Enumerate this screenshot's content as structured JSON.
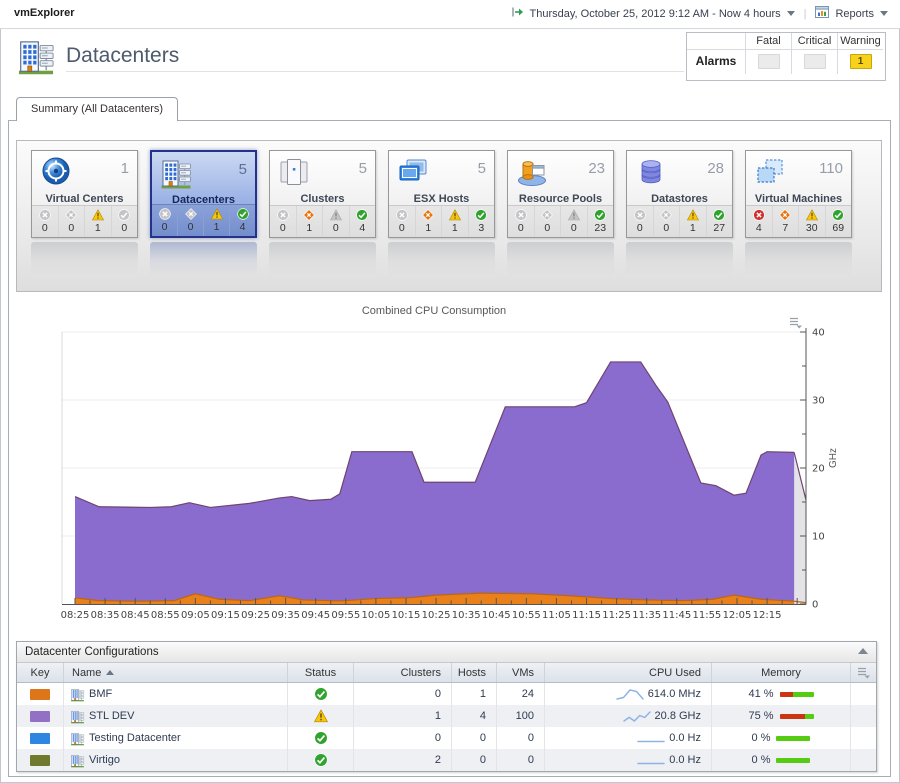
{
  "topbar": {
    "app": "vmExplorer",
    "time_range": "Thursday, October 25, 2012 9:12 AM - Now 4 hours",
    "reports_label": "Reports"
  },
  "header": {
    "title": "Datacenters",
    "alarms": {
      "label": "Alarms",
      "columns": [
        "Fatal",
        "Critical",
        "Warning"
      ],
      "values": {
        "fatal": "",
        "critical": "",
        "warning": "1"
      }
    }
  },
  "tab_label": "Summary (All Datacenters)",
  "tiles": [
    {
      "id": "virtual-centers",
      "label": "Virtual Centers",
      "count": "1",
      "selected": false,
      "statuses": [
        {
          "type": "fatal",
          "count": 0
        },
        {
          "type": "critical",
          "count": 0
        },
        {
          "type": "warning",
          "count": 1
        },
        {
          "type": "normal",
          "count": 0
        }
      ]
    },
    {
      "id": "datacenters",
      "label": "Datacenters",
      "count": "5",
      "selected": true,
      "statuses": [
        {
          "type": "fatal",
          "count": 0
        },
        {
          "type": "critical",
          "count": 0
        },
        {
          "type": "warning",
          "count": 1
        },
        {
          "type": "normal",
          "count": 4
        }
      ]
    },
    {
      "id": "clusters",
      "label": "Clusters",
      "count": "5",
      "selected": false,
      "statuses": [
        {
          "type": "fatal",
          "count": 0
        },
        {
          "type": "critical",
          "count": 1
        },
        {
          "type": "warning",
          "count": 0
        },
        {
          "type": "normal",
          "count": 4
        }
      ]
    },
    {
      "id": "esx-hosts",
      "label": "ESX Hosts",
      "count": "5",
      "selected": false,
      "statuses": [
        {
          "type": "fatal",
          "count": 0
        },
        {
          "type": "critical",
          "count": 1
        },
        {
          "type": "warning",
          "count": 1
        },
        {
          "type": "normal",
          "count": 3
        }
      ]
    },
    {
      "id": "resource-pools",
      "label": "Resource Pools",
      "count": "23",
      "selected": false,
      "statuses": [
        {
          "type": "fatal",
          "count": 0
        },
        {
          "type": "critical",
          "count": 0
        },
        {
          "type": "warning",
          "count": 0
        },
        {
          "type": "normal",
          "count": 23
        }
      ]
    },
    {
      "id": "datastores",
      "label": "Datastores",
      "count": "28",
      "selected": false,
      "statuses": [
        {
          "type": "fatal",
          "count": 0
        },
        {
          "type": "critical",
          "count": 0
        },
        {
          "type": "warning",
          "count": 1
        },
        {
          "type": "normal",
          "count": 27
        }
      ]
    },
    {
      "id": "virtual-machines",
      "label": "Virtual Machines",
      "count": "110",
      "selected": false,
      "statuses": [
        {
          "type": "fatal",
          "count": 4
        },
        {
          "type": "critical",
          "count": 7
        },
        {
          "type": "warning",
          "count": 30
        },
        {
          "type": "normal",
          "count": 69
        }
      ]
    }
  ],
  "chart_data": {
    "type": "area",
    "title": "Combined CPU Consumption",
    "ylabel": "GHz",
    "ylim": [
      0,
      40
    ],
    "yticks": [
      0,
      10,
      20,
      30,
      40
    ],
    "x_tick_labels": [
      "08:25",
      "08:35",
      "08:45",
      "08:55",
      "09:05",
      "09:15",
      "09:25",
      "09:35",
      "09:45",
      "09:55",
      "10:05",
      "10:15",
      "10:25",
      "10:35",
      "10:45",
      "10:55",
      "11:05",
      "11:15",
      "11:25",
      "11:35",
      "11:45",
      "11:55",
      "12:05",
      "12:15"
    ],
    "grid": "horizontal",
    "legend": "none",
    "series": [
      {
        "name": "combined-cpu-upper",
        "fill": "#8a6ccf",
        "stroke": "#6f4470",
        "points": [
          [
            0,
            15.8
          ],
          [
            8,
            14.3
          ],
          [
            25,
            14.2
          ],
          [
            32,
            14.3
          ],
          [
            38,
            14.9
          ],
          [
            45,
            14.2
          ],
          [
            58,
            14.8
          ],
          [
            68,
            15.6
          ],
          [
            72,
            15.8
          ],
          [
            78,
            15.2
          ],
          [
            85,
            15.4
          ],
          [
            88,
            16.2
          ],
          [
            92,
            22.4
          ],
          [
            112,
            22.4
          ],
          [
            116,
            17.9
          ],
          [
            133,
            17.9
          ],
          [
            143,
            29.0
          ],
          [
            166,
            29.0
          ],
          [
            170,
            29.6
          ],
          [
            178,
            35.6
          ],
          [
            188,
            35.6
          ],
          [
            193,
            32.2
          ],
          [
            197,
            29.7
          ],
          [
            208,
            17.8
          ],
          [
            213,
            17.4
          ],
          [
            219,
            16.0
          ],
          [
            223,
            16.3
          ],
          [
            228,
            21.9
          ],
          [
            230,
            22.4
          ],
          [
            239,
            22.3
          ]
        ]
      },
      {
        "name": "combined-cpu-lower",
        "fill": "#e8811c",
        "stroke": "#bf6510",
        "points": [
          [
            0,
            0.9
          ],
          [
            8,
            0.5
          ],
          [
            20,
            0.4
          ],
          [
            33,
            0.5
          ],
          [
            40,
            1.5
          ],
          [
            48,
            0.7
          ],
          [
            58,
            0.5
          ],
          [
            68,
            1.2
          ],
          [
            76,
            0.6
          ],
          [
            88,
            0.45
          ],
          [
            100,
            0.8
          ],
          [
            112,
            0.95
          ],
          [
            120,
            1.3
          ],
          [
            135,
            1.6
          ],
          [
            152,
            1.5
          ],
          [
            165,
            1.2
          ],
          [
            178,
            0.8
          ],
          [
            190,
            0.6
          ],
          [
            202,
            0.5
          ],
          [
            212,
            0.7
          ],
          [
            219,
            1.3
          ],
          [
            228,
            0.7
          ],
          [
            239,
            0.4
          ]
        ]
      }
    ],
    "projection_tail": {
      "x": [
        239,
        243.5
      ],
      "upper": [
        22.3,
        15.3
      ],
      "lower": [
        0.4,
        0.2
      ],
      "fill": "#e3e3e8"
    }
  },
  "table": {
    "title": "Datacenter Configurations",
    "columns": [
      "Key",
      "Name",
      "Status",
      "Clusters",
      "Hosts",
      "VMs",
      "CPU Used",
      "Memory"
    ],
    "sorted_column": "Name",
    "rows": [
      {
        "key_color": "#dd7519",
        "name": "BMF",
        "status": "normal",
        "clusters": "0",
        "hosts": "1",
        "vms": "24",
        "cpu": "614.0 MHz",
        "spark": [
          3,
          4,
          9,
          8,
          3
        ],
        "memory_label": "41 %",
        "memory_pct": 41
      },
      {
        "key_color": "#9270c4",
        "name": "STL DEV",
        "status": "warning",
        "clusters": "1",
        "hosts": "4",
        "vms": "100",
        "cpu": "20.8 GHz",
        "spark": [
          5,
          7,
          5,
          8,
          7,
          10
        ],
        "memory_label": "75 %",
        "memory_pct": 75
      },
      {
        "key_color": "#2e86e0",
        "name": "Testing Datacenter",
        "status": "normal",
        "clusters": "0",
        "hosts": "0",
        "vms": "0",
        "cpu": "0.0 Hz",
        "spark": [
          1,
          1,
          1
        ],
        "memory_label": "0 %",
        "memory_pct": 0
      },
      {
        "key_color": "#6f7a2f",
        "name": "Virtigo",
        "status": "normal",
        "clusters": "2",
        "hosts": "0",
        "vms": "0",
        "cpu": "0.0 Hz",
        "spark": [
          1,
          1,
          1
        ],
        "memory_label": "0 %",
        "memory_pct": 0
      }
    ]
  }
}
